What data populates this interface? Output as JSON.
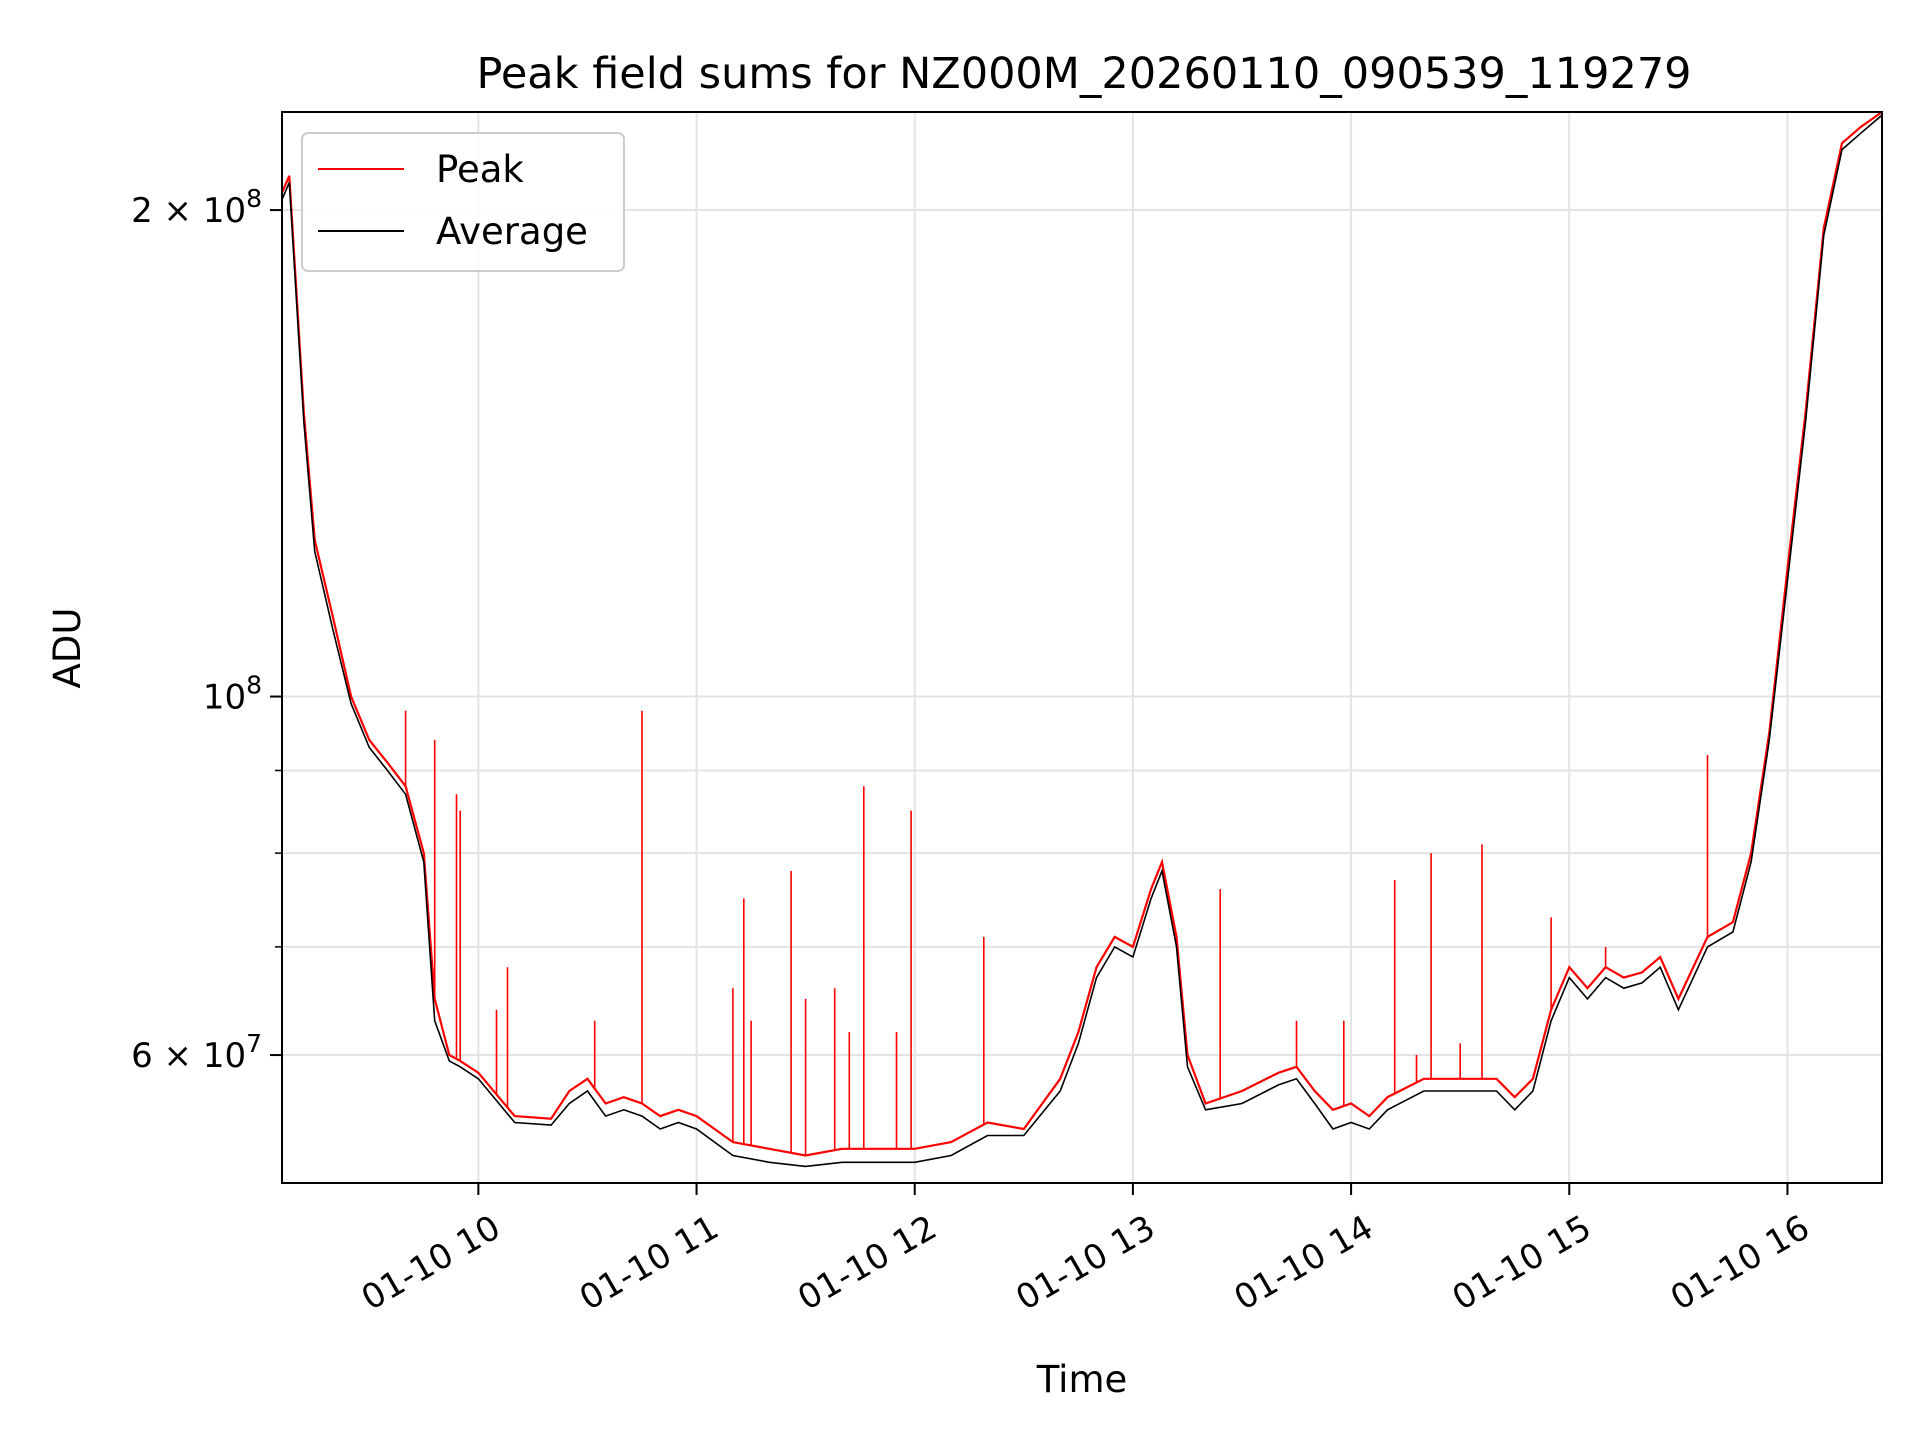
{
  "chart_data": {
    "type": "line",
    "title": "Peak field sums for NZ000M_20260110_090539_119279",
    "xlabel": "Time",
    "ylabel": "ADU",
    "y_scale": "log",
    "ylim": [
      50000000,
      230000000
    ],
    "xlim": [
      "01-10 09:06",
      "01-10 16:26"
    ],
    "grid": true,
    "legend": "upper-left",
    "x_ticks": [
      "01-10 10",
      "01-10 11",
      "01-10 12",
      "01-10 13",
      "01-10 14",
      "01-10 15",
      "01-10 16"
    ],
    "y_ticks_major": [
      {
        "value": 60000000,
        "label": "6 × 10^7",
        "mantissa": "6",
        "exponent": "7"
      },
      {
        "value": 100000000,
        "label": "10^8",
        "mantissa": "",
        "exponent": "8"
      },
      {
        "value": 200000000,
        "label": "2 × 10^8",
        "mantissa": "2",
        "exponent": "8"
      }
    ],
    "y_ticks_minor": [
      70000000,
      80000000,
      90000000
    ],
    "series": [
      {
        "name": "Peak",
        "color": "#ff0000",
        "x": [
          "01-10 09:06",
          "01-10 09:08",
          "01-10 09:12",
          "01-10 09:15",
          "01-10 09:20",
          "01-10 09:25",
          "01-10 09:30",
          "01-10 09:35",
          "01-10 09:40",
          "01-10 09:45",
          "01-10 09:48",
          "01-10 09:52",
          "01-10 09:55",
          "01-10 10:00",
          "01-10 10:10",
          "01-10 10:20",
          "01-10 10:25",
          "01-10 10:30",
          "01-10 10:35",
          "01-10 10:40",
          "01-10 10:45",
          "01-10 10:50",
          "01-10 10:55",
          "01-10 11:00",
          "01-10 11:10",
          "01-10 11:20",
          "01-10 11:30",
          "01-10 11:40",
          "01-10 11:50",
          "01-10 12:00",
          "01-10 12:10",
          "01-10 12:20",
          "01-10 12:30",
          "01-10 12:40",
          "01-10 12:45",
          "01-10 12:50",
          "01-10 12:55",
          "01-10 13:00",
          "01-10 13:05",
          "01-10 13:08",
          "01-10 13:12",
          "01-10 13:15",
          "01-10 13:20",
          "01-10 13:30",
          "01-10 13:40",
          "01-10 13:45",
          "01-10 13:50",
          "01-10 13:55",
          "01-10 14:00",
          "01-10 14:05",
          "01-10 14:10",
          "01-10 14:20",
          "01-10 14:30",
          "01-10 14:40",
          "01-10 14:45",
          "01-10 14:50",
          "01-10 14:55",
          "01-10 15:00",
          "01-10 15:05",
          "01-10 15:10",
          "01-10 15:15",
          "01-10 15:20",
          "01-10 15:25",
          "01-10 15:30",
          "01-10 15:38",
          "01-10 15:45",
          "01-10 15:50",
          "01-10 15:55",
          "01-10 16:00",
          "01-10 16:05",
          "01-10 16:10",
          "01-10 16:15",
          "01-10 16:20",
          "01-10 16:26"
        ],
        "values": [
          205000000,
          210000000,
          150000000,
          125000000,
          112000000,
          100000000,
          94000000,
          91000000,
          88000000,
          80000000,
          65000000,
          60000000,
          59500000,
          58500000,
          55000000,
          54800000,
          57000000,
          58000000,
          56000000,
          56500000,
          56000000,
          55000000,
          55500000,
          55000000,
          53000000,
          52500000,
          52000000,
          52500000,
          52500000,
          52500000,
          53000000,
          54500000,
          54000000,
          58000000,
          62000000,
          68000000,
          71000000,
          70000000,
          76000000,
          79000000,
          71000000,
          60000000,
          56000000,
          57000000,
          58500000,
          59000000,
          57000000,
          55500000,
          56000000,
          55000000,
          56500000,
          58000000,
          58000000,
          58000000,
          56500000,
          58000000,
          64000000,
          68000000,
          66000000,
          68000000,
          67000000,
          67500000,
          69000000,
          65000000,
          71000000,
          72500000,
          80000000,
          95000000,
          120000000,
          150000000,
          195000000,
          220000000,
          225000000,
          230000000
        ],
        "spikes": [
          {
            "x": "01-10 09:40",
            "value": 98000000
          },
          {
            "x": "01-10 09:48",
            "value": 94000000
          },
          {
            "x": "01-10 09:54",
            "value": 87000000
          },
          {
            "x": "01-10 09:55",
            "value": 85000000
          },
          {
            "x": "01-10 10:05",
            "value": 64000000
          },
          {
            "x": "01-10 10:08",
            "value": 68000000
          },
          {
            "x": "01-10 10:32",
            "value": 63000000
          },
          {
            "x": "01-10 10:45",
            "value": 98000000
          },
          {
            "x": "01-10 11:10",
            "value": 66000000
          },
          {
            "x": "01-10 11:13",
            "value": 75000000
          },
          {
            "x": "01-10 11:15",
            "value": 63000000
          },
          {
            "x": "01-10 11:26",
            "value": 78000000
          },
          {
            "x": "01-10 11:30",
            "value": 65000000
          },
          {
            "x": "01-10 11:38",
            "value": 66000000
          },
          {
            "x": "01-10 11:42",
            "value": 62000000
          },
          {
            "x": "01-10 11:46",
            "value": 88000000
          },
          {
            "x": "01-10 11:55",
            "value": 62000000
          },
          {
            "x": "01-10 11:59",
            "value": 85000000
          },
          {
            "x": "01-10 12:19",
            "value": 71000000
          },
          {
            "x": "01-10 13:24",
            "value": 76000000
          },
          {
            "x": "01-10 13:45",
            "value": 63000000
          },
          {
            "x": "01-10 13:58",
            "value": 63000000
          },
          {
            "x": "01-10 14:12",
            "value": 77000000
          },
          {
            "x": "01-10 14:18",
            "value": 60000000
          },
          {
            "x": "01-10 14:22",
            "value": 80000000
          },
          {
            "x": "01-10 14:30",
            "value": 61000000
          },
          {
            "x": "01-10 14:36",
            "value": 81000000
          },
          {
            "x": "01-10 14:55",
            "value": 73000000
          },
          {
            "x": "01-10 15:10",
            "value": 70000000
          },
          {
            "x": "01-10 15:38",
            "value": 92000000
          }
        ]
      },
      {
        "name": "Average",
        "color": "#000000",
        "x": [
          "01-10 09:06",
          "01-10 09:08",
          "01-10 09:12",
          "01-10 09:15",
          "01-10 09:20",
          "01-10 09:25",
          "01-10 09:30",
          "01-10 09:35",
          "01-10 09:40",
          "01-10 09:45",
          "01-10 09:48",
          "01-10 09:52",
          "01-10 09:55",
          "01-10 10:00",
          "01-10 10:10",
          "01-10 10:20",
          "01-10 10:25",
          "01-10 10:30",
          "01-10 10:35",
          "01-10 10:40",
          "01-10 10:45",
          "01-10 10:50",
          "01-10 10:55",
          "01-10 11:00",
          "01-10 11:10",
          "01-10 11:20",
          "01-10 11:30",
          "01-10 11:40",
          "01-10 11:50",
          "01-10 12:00",
          "01-10 12:10",
          "01-10 12:20",
          "01-10 12:30",
          "01-10 12:40",
          "01-10 12:45",
          "01-10 12:50",
          "01-10 12:55",
          "01-10 13:00",
          "01-10 13:05",
          "01-10 13:08",
          "01-10 13:12",
          "01-10 13:15",
          "01-10 13:20",
          "01-10 13:30",
          "01-10 13:40",
          "01-10 13:45",
          "01-10 13:50",
          "01-10 13:55",
          "01-10 14:00",
          "01-10 14:05",
          "01-10 14:10",
          "01-10 14:20",
          "01-10 14:30",
          "01-10 14:40",
          "01-10 14:45",
          "01-10 14:50",
          "01-10 14:55",
          "01-10 15:00",
          "01-10 15:05",
          "01-10 15:10",
          "01-10 15:15",
          "01-10 15:20",
          "01-10 15:25",
          "01-10 15:30",
          "01-10 15:38",
          "01-10 15:45",
          "01-10 15:50",
          "01-10 15:55",
          "01-10 16:00",
          "01-10 16:05",
          "01-10 16:10",
          "01-10 16:15",
          "01-10 16:20",
          "01-10 16:26"
        ],
        "values": [
          203000000,
          208000000,
          148000000,
          123000000,
          110000000,
          99000000,
          93000000,
          90000000,
          87000000,
          79000000,
          63000000,
          59500000,
          59000000,
          58000000,
          54500000,
          54300000,
          56000000,
          57000000,
          55000000,
          55500000,
          55000000,
          54000000,
          54500000,
          54000000,
          52000000,
          51500000,
          51200000,
          51500000,
          51500000,
          51500000,
          52000000,
          53500000,
          53500000,
          57000000,
          61000000,
          67000000,
          70000000,
          69000000,
          75000000,
          78000000,
          70000000,
          59000000,
          55500000,
          56000000,
          57500000,
          58000000,
          56000000,
          54000000,
          54500000,
          54000000,
          55500000,
          57000000,
          57000000,
          57000000,
          55500000,
          57000000,
          63000000,
          67000000,
          65000000,
          67000000,
          66000000,
          66500000,
          68000000,
          64000000,
          70000000,
          71500000,
          79000000,
          94000000,
          118000000,
          148000000,
          193000000,
          218000000,
          223000000,
          229000000
        ]
      }
    ]
  }
}
